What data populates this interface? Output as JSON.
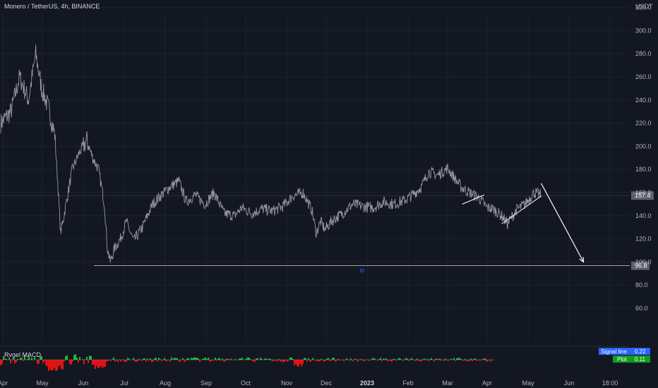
{
  "header": {
    "title": "Monero / TetherUS, 4h, BINANCE",
    "currency": "USDT"
  },
  "colors": {
    "background": "#131722",
    "price_line": "#9598a1",
    "grid": "#1e222d",
    "axis_text": "#b2b5be",
    "annotation": "#ffffff",
    "tp_label": "#2962ff",
    "indicator_up": "#26a69a",
    "indicator_green": "#1fbf2b",
    "indicator_red": "#e31212",
    "signal_tag": "#2962ff",
    "plot_tag": "#0f9d20",
    "price_tag": "#5d606b"
  },
  "chart_data": {
    "type": "line",
    "symbol": "Monero / TetherUS",
    "timeframe": "4h",
    "exchange": "BINANCE",
    "ylabel": "USDT",
    "ylim": [
      40,
      345
    ],
    "yticks": [
      60.0,
      80.0,
      100.0,
      120.0,
      140.0,
      160.0,
      180.0,
      200.0,
      220.0,
      240.0,
      260.0,
      280.0,
      300.0,
      320.0
    ],
    "x_ticks": [
      "Apr",
      "May",
      "Jun",
      "Jul",
      "Aug",
      "Sep",
      "Oct",
      "Nov",
      "Dec",
      "2023",
      "Feb",
      "Mar",
      "Apr",
      "May",
      "Jun",
      "18:00"
    ],
    "series": [
      {
        "x": [
          "2022-04-01",
          "2022-04-08",
          "2022-04-14",
          "2022-04-20",
          "2022-04-25",
          "2022-04-29",
          "2022-05-04",
          "2022-05-08",
          "2022-05-10",
          "2022-05-12",
          "2022-05-15",
          "2022-05-20",
          "2022-05-25",
          "2022-05-30",
          "2022-06-03",
          "2022-06-07",
          "2022-06-11",
          "2022-06-13",
          "2022-06-15",
          "2022-06-18",
          "2022-06-22",
          "2022-06-26",
          "2022-07-01",
          "2022-07-07",
          "2022-07-14",
          "2022-07-20",
          "2022-07-26",
          "2022-08-01",
          "2022-08-06",
          "2022-08-12",
          "2022-08-19",
          "2022-08-25",
          "2022-09-01",
          "2022-09-08",
          "2022-09-13",
          "2022-09-20",
          "2022-09-27",
          "2022-10-04",
          "2022-10-11",
          "2022-10-18",
          "2022-10-25",
          "2022-10-31",
          "2022-11-03",
          "2022-11-06",
          "2022-11-09",
          "2022-11-14",
          "2022-11-21",
          "2022-11-28",
          "2022-12-05",
          "2022-12-12",
          "2022-12-19",
          "2022-12-26",
          "2023-01-02",
          "2023-01-08",
          "2023-01-14",
          "2023-01-19",
          "2023-01-25",
          "2023-02-01",
          "2023-02-06",
          "2023-02-10",
          "2023-02-16",
          "2023-02-22",
          "2023-02-28",
          "2023-03-04",
          "2023-03-10",
          "2023-03-14",
          "2023-03-20",
          "2023-03-26",
          "2023-04-01",
          "2023-04-06"
        ],
        "values": [
          220,
          230,
          260,
          240,
          280,
          250,
          232,
          210,
          170,
          125,
          145,
          180,
          195,
          205,
          190,
          180,
          150,
          112,
          100,
          112,
          120,
          135,
          118,
          130,
          150,
          158,
          165,
          170,
          152,
          158,
          150,
          160,
          142,
          140,
          147,
          142,
          146,
          144,
          148,
          157,
          160,
          145,
          125,
          135,
          128,
          136,
          142,
          150,
          148,
          147,
          152,
          150,
          153,
          158,
          165,
          178,
          175,
          181,
          172,
          165,
          160,
          156,
          147,
          146,
          140,
          133,
          145,
          150,
          160,
          158
        ]
      }
    ],
    "support_level": 96.8,
    "last_price": 157.4,
    "tp_label": "tp",
    "projection": {
      "from": {
        "x": "2023-04-06",
        "y": 168
      },
      "to": {
        "x": "2023-05-05",
        "y": 100
      }
    },
    "triangle_lines": [
      {
        "from": {
          "x": "2023-02-11",
          "y": 150
        },
        "to": {
          "x": "2023-02-26",
          "y": 158
        }
      },
      {
        "from": {
          "x": "2023-03-10",
          "y": 133
        },
        "to": {
          "x": "2023-04-06",
          "y": 157
        }
      }
    ],
    "indicator": {
      "name": "Rvgel MACD",
      "signal_label": "Signal line",
      "signal_value": "0.22",
      "plot_label": "Plot",
      "plot_value": "0.11"
    }
  }
}
